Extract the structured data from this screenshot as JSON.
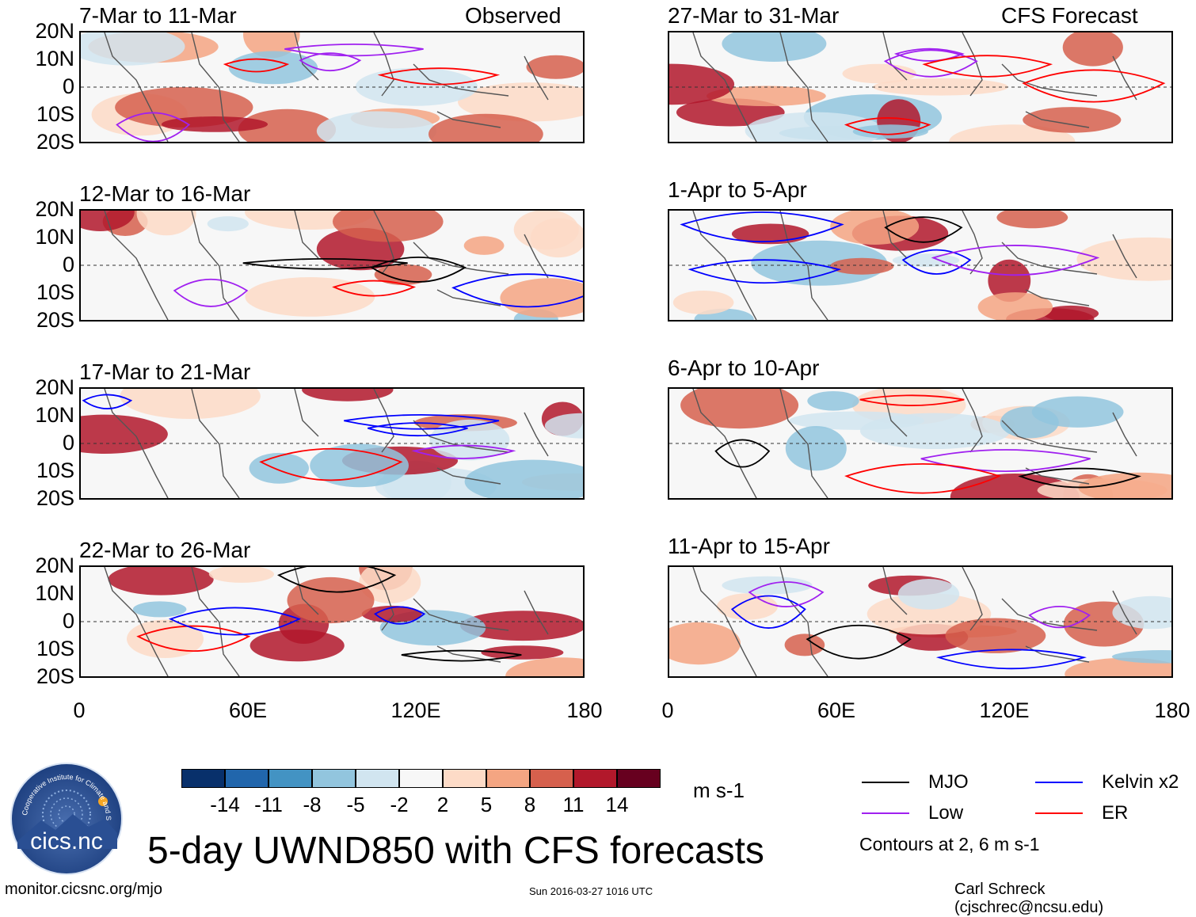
{
  "columns": {
    "observed_label": "Observed",
    "forecast_label": "CFS Forecast"
  },
  "panels_left": [
    {
      "title": "7-Mar to 11-Mar"
    },
    {
      "title": "12-Mar to 16-Mar"
    },
    {
      "title": "17-Mar to 21-Mar"
    },
    {
      "title": "22-Mar to 26-Mar"
    }
  ],
  "panels_right": [
    {
      "title": "27-Mar to 31-Mar"
    },
    {
      "title": "1-Apr to 5-Apr"
    },
    {
      "title": "6-Apr to 10-Apr"
    },
    {
      "title": "11-Apr to 15-Apr"
    }
  ],
  "axes": {
    "lat_labels": [
      "20N",
      "10N",
      "0",
      "10S",
      "20S"
    ],
    "lon_labels": [
      "0",
      "60E",
      "120E",
      "180"
    ]
  },
  "colorbar": {
    "labels": [
      "-14",
      "-11",
      "-8",
      "-5",
      "-2",
      "2",
      "5",
      "8",
      "11",
      "14"
    ],
    "colors": [
      "#08306b",
      "#2166ac",
      "#4393c3",
      "#92c5de",
      "#d1e5f0",
      "#f7f7f7",
      "#fddbc7",
      "#f4a582",
      "#d6604d",
      "#b2182b",
      "#67001f"
    ],
    "units": "m s-1"
  },
  "legend": {
    "items": [
      {
        "label": "MJO",
        "color": "#000000"
      },
      {
        "label": "Kelvin x2",
        "color": "#0000ff"
      },
      {
        "label": "Low",
        "color": "#a020f0"
      },
      {
        "label": "ER",
        "color": "#ff0000"
      }
    ],
    "note": "Contours at 2, 6 m s-1"
  },
  "logo": {
    "text": "cics.nc",
    "ring_text": "Cooperative Institute for Climate and Satellites"
  },
  "main_title": "5-day UWND850 with CFS forecasts",
  "footer": {
    "left": "monitor.cicsnc.org/mjo",
    "center": "Sun 2016-03-27 1016 UTC",
    "right": "Carl Schreck (cjschrec@ncsu.edu)"
  }
}
